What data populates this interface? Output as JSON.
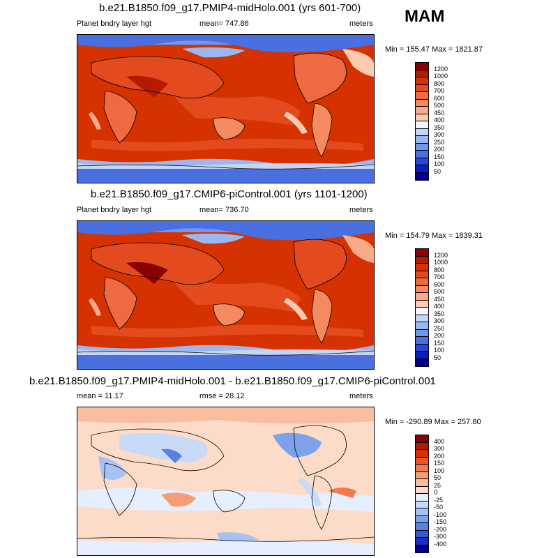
{
  "season": "MAM",
  "panels": [
    {
      "title": "b.e21.B1850.f09_g17.PMIP4-midHolo.001 (yrs 601-700)",
      "left_label": "Planet bndry layer hgt",
      "mid_label": "mean= 747.86",
      "right_label": "meters",
      "minmax": "Min = 155.47 Max = 1821.87",
      "levels": [
        "1200",
        "1000",
        "800",
        "700",
        "600",
        "500",
        "450",
        "400",
        "350",
        "300",
        "250",
        "200",
        "150",
        "100",
        "50"
      ]
    },
    {
      "title": "b.e21.B1850.f09_g17.CMIP6-piControl.001 (yrs 1101-1200)",
      "left_label": "Planet bndry layer hgt",
      "mid_label": "mean= 736.70",
      "right_label": "meters",
      "minmax": "Min = 154.79 Max = 1839.31",
      "levels": [
        "1200",
        "1000",
        "800",
        "700",
        "600",
        "500",
        "450",
        "400",
        "350",
        "300",
        "250",
        "200",
        "150",
        "100",
        "50"
      ]
    },
    {
      "title": "b.e21.B1850.f09_g17.PMIP4-midHolo.001 - b.e21.B1850.f09_g17.CMIP6-piControl.001",
      "left_label": "mean =  11.17",
      "mid_label": "rmse =  28.12",
      "right_label": "meters",
      "minmax": "Min = -290.89 Max = 257.80",
      "levels": [
        "400",
        "300",
        "200",
        "150",
        "100",
        "50",
        "25",
        "0",
        "-25",
        "-50",
        "-100",
        "-150",
        "-200",
        "-300",
        "-400"
      ]
    }
  ],
  "colors": {
    "abs_scale": [
      "#8b0000",
      "#b31b00",
      "#d63200",
      "#e34a1e",
      "#ef6a40",
      "#f58a60",
      "#f8ab88",
      "#fbcbb0",
      "#f0f4ff",
      "#c5d5f5",
      "#9ab7f0",
      "#6f97ea",
      "#4a6fe0",
      "#2a45d6",
      "#0b1fbf",
      "#00008f"
    ],
    "diff_scale": [
      "#8b0000",
      "#b31b00",
      "#d63200",
      "#e85528",
      "#f27a4d",
      "#f69d78",
      "#f9bea2",
      "#fcdcc8",
      "#e6efff",
      "#c8daf8",
      "#a6c1f2",
      "#7da2ea",
      "#5a80e0",
      "#3557d4",
      "#1c2fc2",
      "#000096"
    ]
  }
}
